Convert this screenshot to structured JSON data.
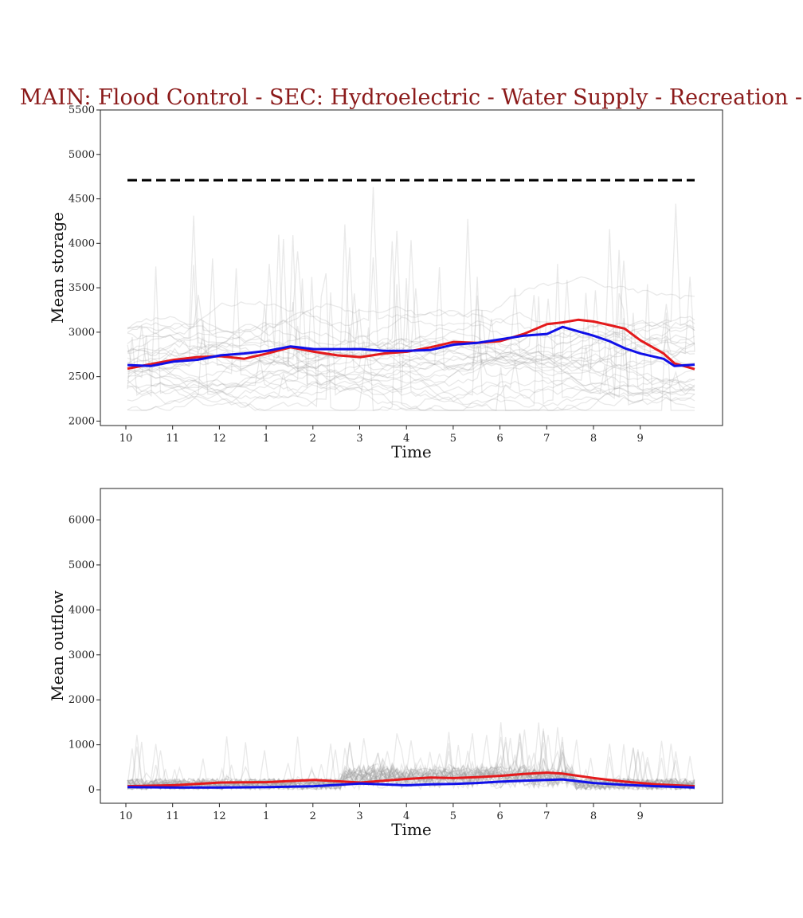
{
  "title": "MAIN: Flood Control - SEC: Hydroelectric - Water Supply - Recreation -",
  "colors": {
    "title": "#8b1a1a",
    "ensemble": "#9a9a9a",
    "series_red": "#e41a1c",
    "series_blue": "#1010e8",
    "reference": "#000000"
  },
  "chart_data": [
    {
      "type": "line",
      "ylabel": "Mean storage",
      "xlabel": "Time",
      "x_tick_labels": [
        "10",
        "11",
        "12",
        "1",
        "2",
        "3",
        "4",
        "5",
        "6",
        "7",
        "8",
        "9"
      ],
      "x_range": [
        0,
        365
      ],
      "ylim": [
        1950,
        5500
      ],
      "y_ticks": [
        2000,
        2500,
        3000,
        3500,
        4000,
        4500,
        5000,
        5500
      ],
      "reference_line": {
        "y": 4710,
        "style": "dashed",
        "color": "#000000"
      },
      "series": [
        {
          "color": "#e41a1c",
          "x": [
            0,
            15,
            30,
            45,
            60,
            75,
            90,
            105,
            120,
            135,
            150,
            165,
            180,
            195,
            210,
            225,
            240,
            255,
            270,
            280,
            290,
            300,
            310,
            320,
            330,
            345,
            352,
            365
          ],
          "values": [
            2590,
            2640,
            2690,
            2720,
            2730,
            2700,
            2760,
            2830,
            2780,
            2740,
            2720,
            2760,
            2780,
            2830,
            2890,
            2880,
            2900,
            2980,
            3090,
            3110,
            3140,
            3120,
            3080,
            3040,
            2910,
            2760,
            2650,
            2585
          ]
        },
        {
          "color": "#1010e8",
          "x": [
            0,
            15,
            30,
            45,
            60,
            75,
            90,
            105,
            120,
            135,
            150,
            165,
            180,
            195,
            210,
            225,
            240,
            255,
            270,
            280,
            290,
            300,
            310,
            320,
            330,
            345,
            352,
            365
          ],
          "values": [
            2630,
            2620,
            2670,
            2690,
            2740,
            2760,
            2790,
            2840,
            2810,
            2810,
            2810,
            2790,
            2790,
            2800,
            2860,
            2880,
            2920,
            2960,
            2980,
            3060,
            3010,
            2960,
            2900,
            2820,
            2760,
            2700,
            2620,
            2635
          ]
        }
      ]
    },
    {
      "type": "line",
      "ylabel": "Mean outflow",
      "xlabel": "Time",
      "x_tick_labels": [
        "10",
        "11",
        "12",
        "1",
        "2",
        "3",
        "4",
        "5",
        "6",
        "7",
        "8",
        "9"
      ],
      "x_range": [
        0,
        365
      ],
      "ylim": [
        -300,
        6700
      ],
      "y_ticks": [
        0,
        1000,
        2000,
        3000,
        4000,
        5000,
        6000
      ],
      "series": [
        {
          "color": "#e41a1c",
          "x": [
            0,
            30,
            60,
            90,
            120,
            150,
            180,
            195,
            210,
            225,
            240,
            255,
            270,
            280,
            300,
            320,
            340,
            365
          ],
          "values": [
            80,
            100,
            160,
            170,
            220,
            160,
            240,
            270,
            260,
            280,
            310,
            350,
            380,
            360,
            260,
            180,
            120,
            80
          ]
        },
        {
          "color": "#1010e8",
          "x": [
            0,
            30,
            60,
            90,
            120,
            150,
            180,
            195,
            210,
            225,
            240,
            255,
            270,
            280,
            300,
            320,
            340,
            365
          ],
          "values": [
            60,
            50,
            50,
            60,
            80,
            140,
            100,
            120,
            130,
            150,
            180,
            200,
            220,
            230,
            150,
            110,
            80,
            50
          ]
        }
      ]
    }
  ]
}
